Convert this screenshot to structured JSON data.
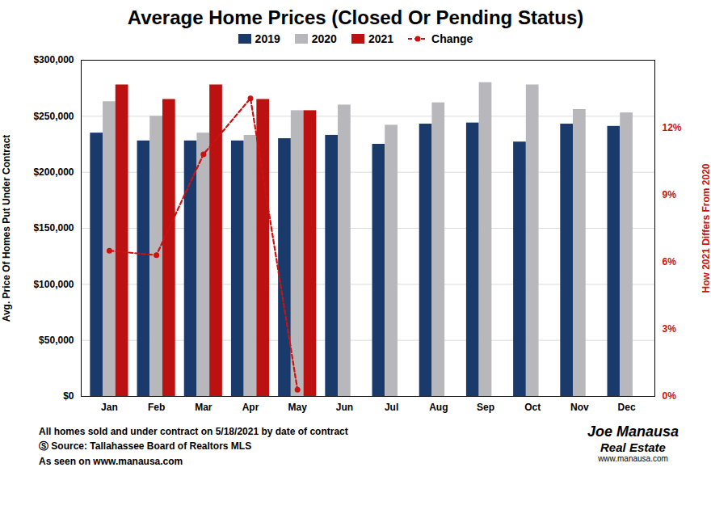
{
  "chart_data": {
    "type": "bar",
    "title": "Average Home Prices (Closed Or Pending Status)",
    "categories": [
      "Jan",
      "Feb",
      "Mar",
      "Apr",
      "May",
      "Jun",
      "Jul",
      "Aug",
      "Sep",
      "Oct",
      "Nov",
      "Dec"
    ],
    "series": [
      {
        "name": "2019",
        "color": "#1a3a6b",
        "values": [
          235000,
          228000,
          228000,
          228000,
          230000,
          233000,
          225000,
          243000,
          244000,
          227000,
          243000,
          241000
        ]
      },
      {
        "name": "2020",
        "color": "#b8b8bc",
        "values": [
          263000,
          250000,
          235000,
          233000,
          255000,
          260000,
          242000,
          262000,
          280000,
          278000,
          256000,
          253000
        ]
      },
      {
        "name": "2021",
        "color": "#bb1111",
        "values": [
          278000,
          265000,
          278000,
          265000,
          255000,
          null,
          null,
          null,
          null,
          null,
          null,
          null
        ]
      },
      {
        "name": "Change",
        "type": "line",
        "axis": "y2",
        "color": "#cc1111",
        "line_style": "dashed",
        "marker": "circle",
        "values": [
          6.5,
          6.3,
          10.8,
          13.3,
          0.3,
          null,
          null,
          null,
          null,
          null,
          null,
          null
        ]
      }
    ],
    "ylabel": "Avg. Price Of Homes Put Under Contract",
    "y2label": "How 2021 Differs From 2020",
    "ylim": [
      0,
      300000
    ],
    "yticks": [
      {
        "value": 0,
        "label": "$0"
      },
      {
        "value": 50000,
        "label": "$50,000"
      },
      {
        "value": 100000,
        "label": "$100,000"
      },
      {
        "value": 150000,
        "label": "$150,000"
      },
      {
        "value": 200000,
        "label": "$200,000"
      },
      {
        "value": 250000,
        "label": "$250,000"
      },
      {
        "value": 300000,
        "label": "$300,000"
      }
    ],
    "y2lim": [
      0,
      15
    ],
    "y2ticks": [
      {
        "value": 0,
        "label": "0%"
      },
      {
        "value": 3,
        "label": "3%"
      },
      {
        "value": 6,
        "label": "6%"
      },
      {
        "value": 9,
        "label": "9%"
      },
      {
        "value": 12,
        "label": "12%"
      }
    ],
    "grid": true,
    "legend": "top",
    "annotations": [
      "All homes sold and under contract on 5/18/2021 by date of contract",
      "Ⓢ Source: Tallahassee Board of Realtors MLS",
      "As seen on www.manausa.com",
      "Joe Manausa",
      "Real Estate",
      "www.manausa.com"
    ]
  }
}
